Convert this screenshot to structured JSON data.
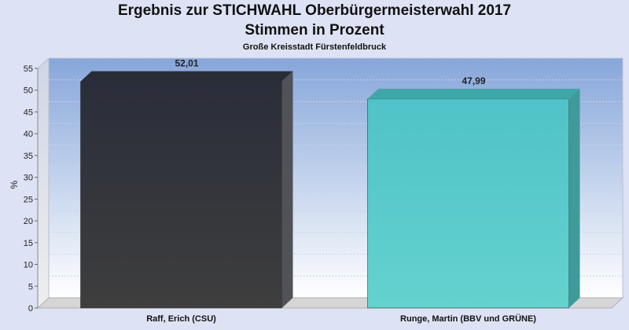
{
  "chart_data": {
    "type": "bar",
    "title": "Ergebnis zur STICHWAHL Oberbürgermeisterwahl 2017",
    "subtitle": "Stimmen in Prozent",
    "caption": "Große Kreisstadt Fürstenfeldbruck",
    "ylabel": "%",
    "ylim": [
      0,
      55
    ],
    "yticks": [
      0,
      5,
      10,
      15,
      20,
      25,
      30,
      35,
      40,
      45,
      50,
      55
    ],
    "categories": [
      "Raff, Erich (CSU)",
      "Runge, Martin (BBV und GRÜNE)"
    ],
    "values": [
      52.01,
      47.99
    ],
    "value_labels": [
      "52,01",
      "47,99"
    ],
    "colors": [
      "#363636",
      "#56c9cb"
    ],
    "grid": true,
    "legend": "none"
  }
}
